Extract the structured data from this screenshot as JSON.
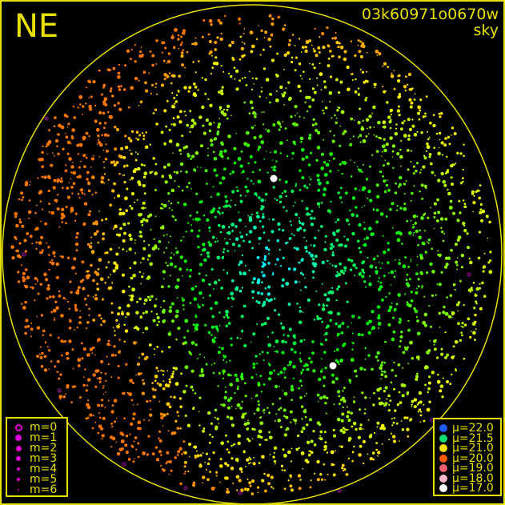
{
  "header": {
    "quadrant": "NE",
    "frame_id": "03k60971o0670w",
    "map_type": "sky"
  },
  "colors": {
    "border": "#e8e000",
    "background": "#000000"
  },
  "magnitude_legend": {
    "items": [
      {
        "label": "m=0",
        "hollow": true
      },
      {
        "label": "m=1"
      },
      {
        "label": "m=2"
      },
      {
        "label": "m=3"
      },
      {
        "label": "m=4"
      },
      {
        "label": "m=5"
      },
      {
        "label": "m=6"
      }
    ],
    "color": "#e000e0"
  },
  "sky_legend": {
    "items": [
      {
        "label": "μ=22.0",
        "color": "#1e5cff"
      },
      {
        "label": "μ=21.5",
        "color": "#10e070"
      },
      {
        "label": "μ=21.0",
        "color": "#ffe000"
      },
      {
        "label": "μ=20.0",
        "color": "#ff5a00"
      },
      {
        "label": "μ=19.0",
        "color": "#f06070"
      },
      {
        "label": "μ=18.0",
        "color": "#ffb8c8"
      },
      {
        "label": "μ=17.0",
        "color": "#ffffff"
      }
    ]
  }
}
